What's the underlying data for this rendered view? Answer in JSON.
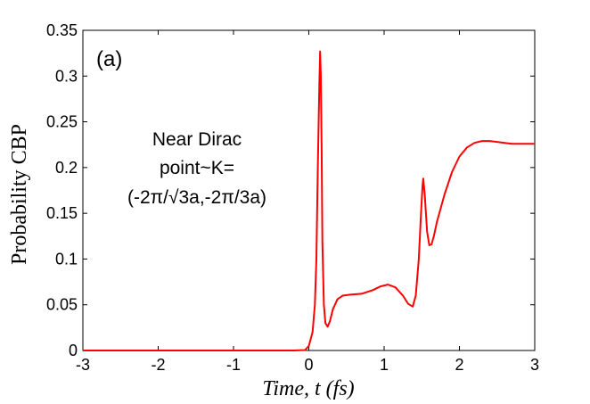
{
  "chart_data": {
    "type": "line",
    "xlabel": "Time, t (fs)",
    "ylabel": "Probability CBP",
    "xlim": [
      -3,
      3
    ],
    "ylim": [
      0,
      0.35
    ],
    "xticks": [
      "-3",
      "-2",
      "-1",
      "0",
      "1",
      "2",
      "3"
    ],
    "yticks": [
      "0",
      "0.05",
      "0.1",
      "0.15",
      "0.2",
      "0.25",
      "0.3",
      "0.35"
    ],
    "grid": false,
    "panel_label": "(a)",
    "annotation": [
      "Near Dirac",
      "point~K=",
      "(-2π/√3a,-2π/3a)"
    ],
    "series": [
      {
        "color": "#ff0000",
        "x": [
          -3,
          -1,
          -0.2,
          -0.05,
          0,
          0.05,
          0.08,
          0.1,
          0.12,
          0.14,
          0.15,
          0.16,
          0.17,
          0.18,
          0.2,
          0.22,
          0.25,
          0.28,
          0.32,
          0.38,
          0.45,
          0.55,
          0.7,
          0.85,
          0.95,
          1.05,
          1.15,
          1.25,
          1.32,
          1.38,
          1.42,
          1.46,
          1.49,
          1.51,
          1.52,
          1.54,
          1.57,
          1.6,
          1.63,
          1.66,
          1.7,
          1.8,
          1.9,
          2.0,
          2.1,
          2.2,
          2.3,
          2.4,
          2.5,
          2.6,
          2.7,
          2.8,
          3.0
        ],
        "y": [
          0,
          0,
          0,
          0.0005,
          0.005,
          0.02,
          0.05,
          0.1,
          0.2,
          0.29,
          0.327,
          0.3,
          0.22,
          0.12,
          0.05,
          0.03,
          0.026,
          0.032,
          0.045,
          0.056,
          0.06,
          0.061,
          0.062,
          0.066,
          0.07,
          0.072,
          0.069,
          0.06,
          0.051,
          0.048,
          0.06,
          0.1,
          0.15,
          0.18,
          0.188,
          0.17,
          0.13,
          0.115,
          0.116,
          0.125,
          0.14,
          0.17,
          0.195,
          0.212,
          0.222,
          0.227,
          0.229,
          0.229,
          0.228,
          0.227,
          0.226,
          0.226,
          0.226
        ]
      }
    ]
  }
}
